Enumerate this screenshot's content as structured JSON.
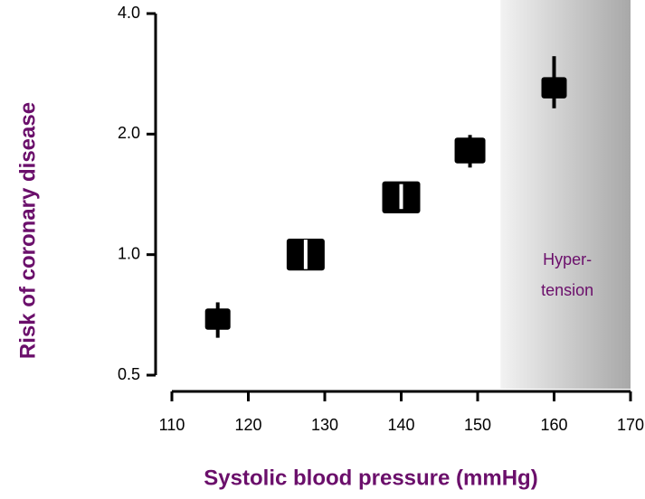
{
  "chart_data": {
    "type": "scatter",
    "xlabel": "Systolic blood pressure (mmHg)",
    "ylabel": "Risk of coronary disease",
    "x": [
      116,
      127.5,
      140,
      149,
      160
    ],
    "values": [
      0.69,
      1.0,
      1.39,
      1.82,
      2.61
    ],
    "lower": [
      0.62,
      0.92,
      1.3,
      1.65,
      2.32
    ],
    "upper": [
      0.76,
      1.09,
      1.5,
      1.99,
      3.13
    ],
    "sizes": [
      28,
      42,
      42,
      34,
      28
    ],
    "color": "#000000",
    "ylog": true,
    "xlim": [
      110,
      170
    ],
    "xticks": [
      110,
      120,
      130,
      140,
      150,
      160,
      170
    ],
    "ylim": [
      0.5,
      4
    ],
    "yticks": [
      0.5,
      {
        "value": 1,
        "label": "1.0"
      },
      {
        "value": 2,
        "label": "2.0"
      },
      {
        "value": 4,
        "label": "4.0"
      }
    ],
    "shaded_region": {
      "xmin": 153,
      "xmax": 170,
      "label": [
        "Hyper-",
        "tension"
      ]
    },
    "label_color": "#6b0f6b"
  }
}
